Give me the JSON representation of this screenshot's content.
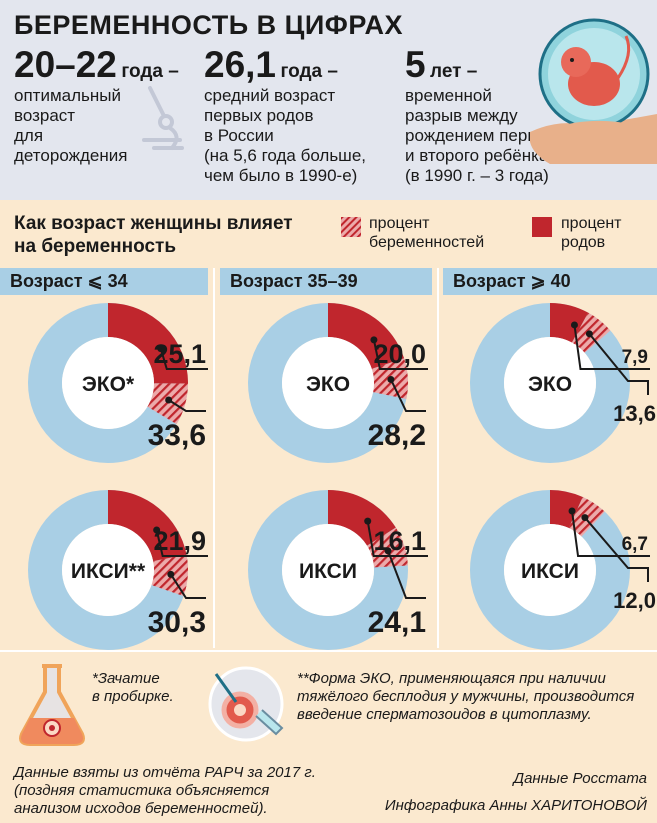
{
  "header": {
    "title": "БЕРЕМЕННОСТЬ В ЦИФРАХ",
    "stats": [
      {
        "value": "20–22",
        "unit": "года –",
        "desc": [
          "оптимальный",
          "возраст",
          "для",
          "деторождения"
        ]
      },
      {
        "value": "26,1",
        "unit": "года –",
        "desc": [
          "средний возраст",
          "первых родов",
          "в России",
          "(на 5,6 года больше,",
          "чем было в 1990-е)"
        ]
      },
      {
        "value": "5",
        "unit": "лет –",
        "desc": [
          "временной",
          "разрыв между",
          "рождением первого",
          "и второго ребёнка",
          "(в 1990 г. – 3 года)"
        ]
      }
    ]
  },
  "section": {
    "title_lines": [
      "Как возраст женщины влияет",
      "на беременность"
    ],
    "legend": [
      {
        "label_lines": [
          "процент",
          "беременностей"
        ],
        "pattern": "hatched"
      },
      {
        "label_lines": [
          "процент",
          "родов"
        ],
        "pattern": "solid"
      }
    ],
    "age_groups": [
      "Возраст ⩽ 34",
      "Возраст 35–39",
      "Возраст ⩾ 40"
    ]
  },
  "chart_data": {
    "type": "pie",
    "series_names": [
      "процент родов",
      "процент беременностей"
    ],
    "groups": [
      {
        "age": "Возраст ⩽ 34",
        "method": "ЭКО*",
        "births": 25.1,
        "pregnancies": 33.6,
        "births_label": "25,1",
        "pregnancies_label": "33,6"
      },
      {
        "age": "Возраст ⩽ 34",
        "method": "ИКСИ**",
        "births": 21.9,
        "pregnancies": 30.3,
        "births_label": "21,9",
        "pregnancies_label": "30,3"
      },
      {
        "age": "Возраст 35–39",
        "method": "ЭКО",
        "births": 20.0,
        "pregnancies": 28.2,
        "births_label": "20,0",
        "pregnancies_label": "28,2"
      },
      {
        "age": "Возраст 35–39",
        "method": "ИКСИ",
        "births": 16.1,
        "pregnancies": 24.1,
        "births_label": "16,1",
        "pregnancies_label": "24,1"
      },
      {
        "age": "Возраст ⩾ 40",
        "method": "ЭКО",
        "births": 7.9,
        "pregnancies": 13.6,
        "births_label": "7,9",
        "pregnancies_label": "13,6"
      },
      {
        "age": "Возраст ⩾ 40",
        "method": "ИКСИ",
        "births": 6.7,
        "pregnancies": 12.0,
        "births_label": "6,7",
        "pregnancies_label": "12,0"
      }
    ],
    "colors": {
      "births": "#c0262d",
      "pregnancies": "#e8a3a3",
      "hatch": "#c0262d",
      "rest": "#a9cfe5"
    }
  },
  "footnotes": {
    "eko": [
      "*Зачатие",
      "в пробирке."
    ],
    "iksi": [
      "**Форма ЭКО, применяющаяся при наличии",
      "тяжёлого бесплодия у мужчины, производится",
      "введение сперматозоидов в цитоплазму."
    ],
    "source_note": [
      "Данные взяты из отчёта РАРЧ за 2017 г.",
      "(поздняя статистика объясняется",
      "анализом исходов беременностей)."
    ],
    "data_source": "Данные Росстата",
    "credit": "Инфографика Анны ХАРИТОНОВОЙ"
  },
  "icons": [
    "pregnancy-illustration-icon",
    "microscope-icon",
    "flask-icon",
    "micropipette-egg-icon"
  ]
}
